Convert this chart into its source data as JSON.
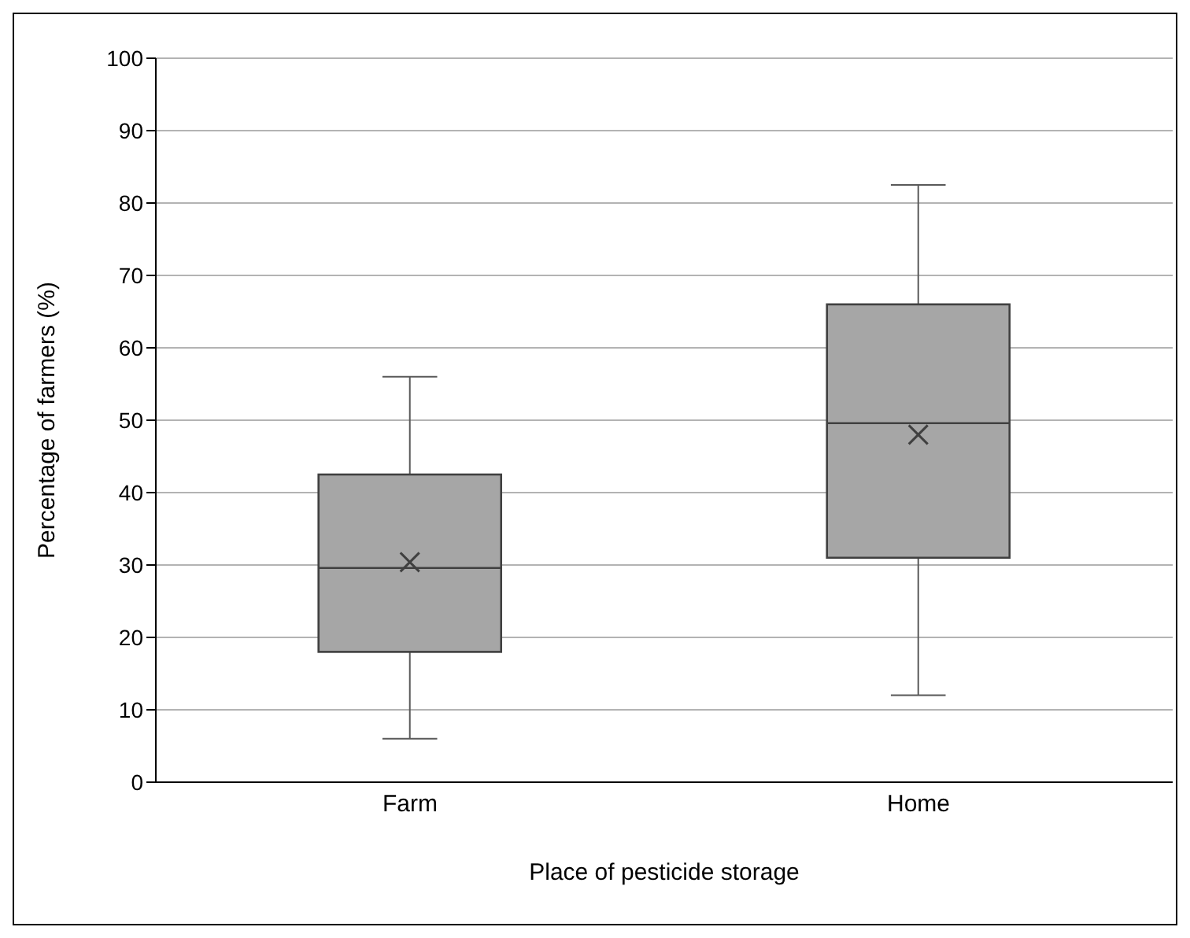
{
  "chart_data": {
    "type": "box",
    "xlabel": "Place of pesticide storage",
    "ylabel": "Percentage of farmers (%)",
    "categories": [
      "Farm",
      "Home"
    ],
    "boxes": [
      {
        "low": 6,
        "q1": 18,
        "median": 29.6,
        "q3": 42.5,
        "high": 56,
        "mean": 30.4
      },
      {
        "low": 12,
        "q1": 31,
        "median": 49.6,
        "q3": 66,
        "high": 82.5,
        "mean": 48
      }
    ],
    "color": "#a6a6a6",
    "ylim": [
      0,
      100
    ],
    "yticks": [
      0,
      10,
      20,
      30,
      40,
      50,
      60,
      70,
      80,
      90,
      100
    ],
    "grid": "y"
  }
}
